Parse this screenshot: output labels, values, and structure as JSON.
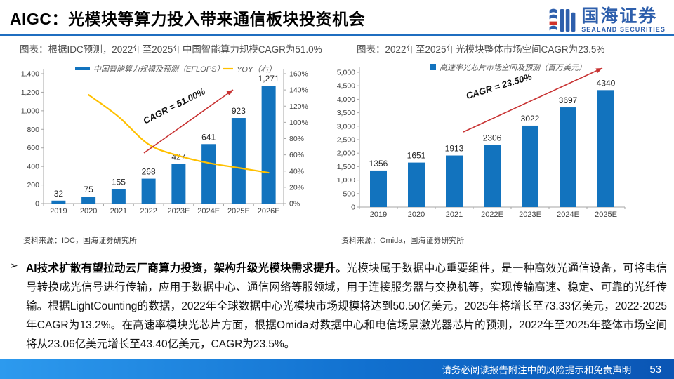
{
  "header": {
    "title": "AIGC：光模块等算力投入带来通信板块投资机会",
    "logo": {
      "name": "国海证券",
      "subtitle": "SEALAND SECURITIES"
    }
  },
  "captions": {
    "left": "图表：根据IDC预测，2022年至2025年中国智能算力规模CAGR为51.0%",
    "right": "图表：2022年至2025年光模块整体市场空间CAGR为23.5%"
  },
  "colors": {
    "bar_blue": "#1273BE",
    "line_yellow": "#FFC000",
    "arrow_red": "#C83232",
    "rule_blue": "#1F6EC0",
    "logo_blue": "#2E5FAC",
    "logo_red": "#D1342C"
  },
  "chart_data": [
    {
      "type": "bar",
      "categories": [
        "2019",
        "2020",
        "2021",
        "2022",
        "2023E",
        "2024E",
        "2025E",
        "2026E"
      ],
      "series": [
        {
          "name": "中国智能算力规模及预测（EFLOPS）",
          "kind": "bar",
          "axis": "left",
          "values": [
            32,
            75,
            155,
            268,
            427,
            641,
            923,
            1271
          ],
          "labels": [
            "32",
            "75",
            "155",
            "268",
            "427",
            "641",
            "923",
            "1,271"
          ],
          "color": "#1273BE"
        },
        {
          "name": "YOY（右）",
          "kind": "line",
          "axis": "right",
          "values": [
            null,
            134,
            107,
            73,
            59,
            50,
            44,
            38
          ],
          "color": "#FFC000"
        }
      ],
      "axes": {
        "left": {
          "min": 0,
          "max": 1400,
          "step": 200,
          "comma": true
        },
        "right": {
          "min": 0,
          "max": 160,
          "step": 20,
          "suffix": "%"
        }
      },
      "annotation": {
        "text": "CAGR = 51.00%",
        "color": "#C83232"
      },
      "source": "资料来源：IDC，国海证券研究所"
    },
    {
      "type": "bar",
      "categories": [
        "2019",
        "2020",
        "2021",
        "2022E",
        "2023E",
        "2024E",
        "2025E"
      ],
      "series": [
        {
          "name": "高速率光芯片市场空间及预测（百万美元）",
          "kind": "bar",
          "axis": "left",
          "values": [
            1356,
            1651,
            1913,
            2306,
            3022,
            3697,
            4340
          ],
          "labels": [
            "1356",
            "1651",
            "1913",
            "2306",
            "3022",
            "3697",
            "4340"
          ],
          "color": "#1273BE"
        }
      ],
      "axes": {
        "left": {
          "min": 0,
          "max": 5000,
          "step": 500,
          "comma": true
        }
      },
      "annotation": {
        "text": "CAGR = 23.50%",
        "color": "#C83232"
      },
      "source": "资料来源：Omida，国海证券研究所"
    }
  ],
  "body": {
    "bullet": "➢",
    "lead_bold": "AI技术扩散有望拉动云厂商算力投资，架构升级光模块需求提升。",
    "text": "光模块属于数据中心重要组件，是一种高效光通信设备，可将电信号转换成光信号进行传输，应用于数据中心、通信网络等服领域，用于连接服务器与交换机等，实现传输高速、稳定、可靠的光纤传输。根据LightCounting的数据，2022年全球数据中心光模块市场规模将达到50.50亿美元，2025年将增长至73.33亿美元，2022-2025年CAGR为13.2%。在高速率模块光芯片方面，根据Omida对数据中心和电信场景激光器芯片的预测，2022年至2025年整体市场空间将从23.06亿美元增长至43.40亿美元，CAGR为23.5%。"
  },
  "footer": {
    "disclaimer": "请务必阅读报告附注中的风险提示和免责声明",
    "page": "53"
  }
}
